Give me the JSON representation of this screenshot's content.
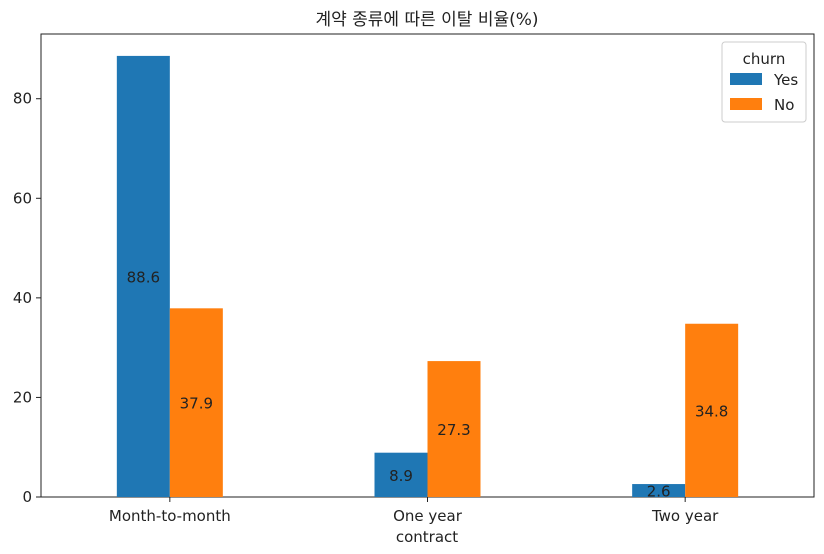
{
  "chart_data": {
    "type": "bar",
    "title": "계약 종류에 따른 이탈 비율(%)",
    "xlabel": "contract",
    "ylabel": "",
    "categories": [
      "Month-to-month",
      "One year",
      "Two year"
    ],
    "series": [
      {
        "name": "Yes",
        "values": [
          88.6,
          8.9,
          2.6
        ],
        "labels": [
          "88.6",
          "8.9",
          "2.6"
        ]
      },
      {
        "name": "No",
        "values": [
          37.9,
          27.3,
          34.8
        ],
        "labels": [
          "37.9",
          "27.3",
          "34.8"
        ]
      }
    ],
    "ylim": [
      0,
      93
    ],
    "yticks": [
      0,
      20,
      40,
      60,
      80
    ],
    "legend": {
      "title": "churn",
      "placement": "top-right"
    },
    "grid": false,
    "colors": {
      "Yes": "#1f77b4",
      "No": "#ff7f0e"
    }
  }
}
